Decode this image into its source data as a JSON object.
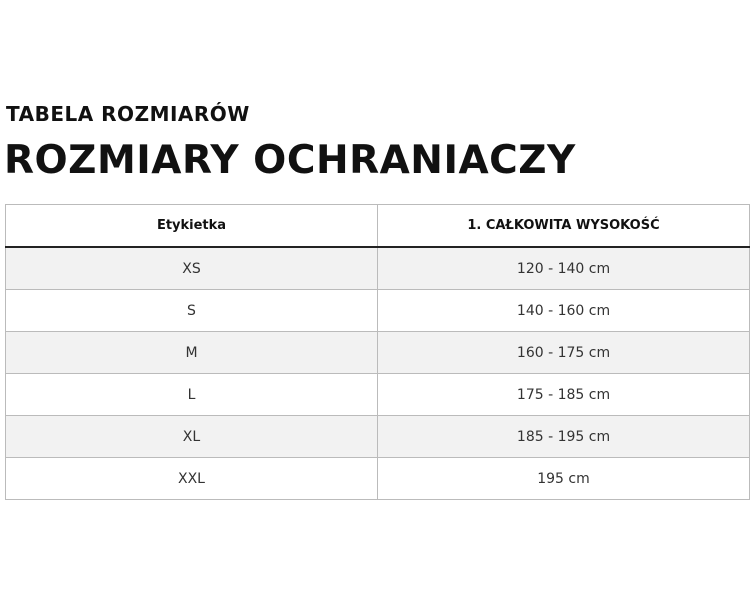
{
  "subtitle": "TABELA ROZMIARÓW",
  "title": "ROZMIARY OCHRANIACZY",
  "table": {
    "headers": [
      "Etykietka",
      "1. CAŁKOWITA WYSOKOŚĆ"
    ],
    "rows": [
      [
        "XS",
        "120 - 140 cm"
      ],
      [
        "S",
        "140 - 160 cm"
      ],
      [
        "M",
        "160 - 175 cm"
      ],
      [
        "L",
        "175 - 185 cm"
      ],
      [
        "XL",
        "185 - 195 cm"
      ],
      [
        "XXL",
        "195 cm"
      ]
    ]
  }
}
